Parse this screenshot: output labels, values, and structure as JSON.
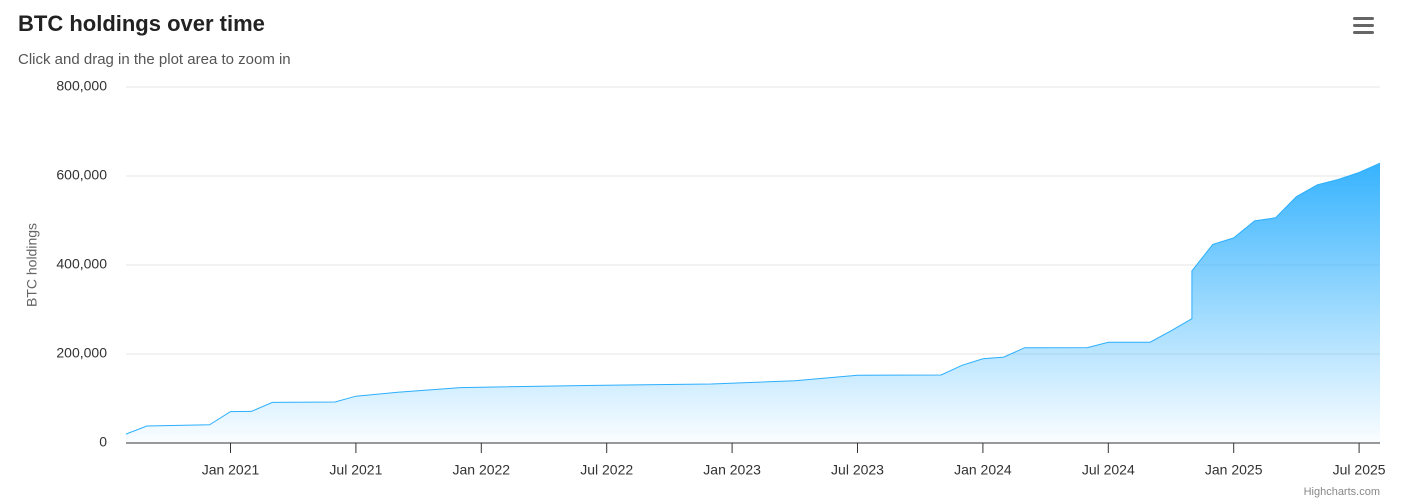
{
  "chart_data": {
    "type": "area",
    "title": "BTC holdings over time",
    "subtitle": "Click and drag in the plot area to zoom in",
    "y_axis_label": "BTC holdings",
    "credits": "Highcharts.com",
    "color": "#2caffe",
    "grid": true,
    "x": [
      "2020-08",
      "2020-09",
      "2020-12",
      "2021-01",
      "2021-02",
      "2021-03",
      "2021-06",
      "2021-07",
      "2021-09",
      "2021-12",
      "2022-06",
      "2022-12",
      "2023-04",
      "2023-07",
      "2023-11",
      "2023-12",
      "2024-01",
      "2024-02",
      "2024-03",
      "2024-06",
      "2024-07",
      "2024-09",
      "2024-10",
      "2024-11",
      "2024-11",
      "2024-12",
      "2025-01",
      "2025-02",
      "2025-03",
      "2025-04",
      "2025-05",
      "2025-06",
      "2025-07",
      "2025-08"
    ],
    "values": [
      20000,
      38250,
      40824,
      70470,
      71079,
      91326,
      92079,
      105085,
      114042,
      124391,
      129218,
      132500,
      140000,
      152333,
      152800,
      174530,
      189150,
      193000,
      214246,
      214400,
      226331,
      226500,
      252220,
      279420,
      386700,
      446400,
      461000,
      499096,
      506137,
      553555,
      580250,
      592100,
      607770,
      628791
    ],
    "xlim": [
      "2020-08",
      "2025-08"
    ],
    "xticks": [
      {
        "value": "2021-01",
        "label": "Jan 2021"
      },
      {
        "value": "2021-07",
        "label": "Jul 2021"
      },
      {
        "value": "2022-01",
        "label": "Jan 2022"
      },
      {
        "value": "2022-07",
        "label": "Jul 2022"
      },
      {
        "value": "2023-01",
        "label": "Jan 2023"
      },
      {
        "value": "2023-07",
        "label": "Jul 2023"
      },
      {
        "value": "2024-01",
        "label": "Jan 2024"
      },
      {
        "value": "2024-07",
        "label": "Jul 2024"
      },
      {
        "value": "2025-01",
        "label": "Jan 2025"
      },
      {
        "value": "2025-07",
        "label": "Jul 2025"
      }
    ],
    "ylim": [
      0,
      800000
    ],
    "yticks": [
      0,
      {
        "value": 200000,
        "label": "200,000"
      },
      {
        "value": 400000,
        "label": "400,000"
      },
      {
        "value": 600000,
        "label": "600,000"
      },
      {
        "value": 800000,
        "label": "800,000"
      }
    ]
  }
}
